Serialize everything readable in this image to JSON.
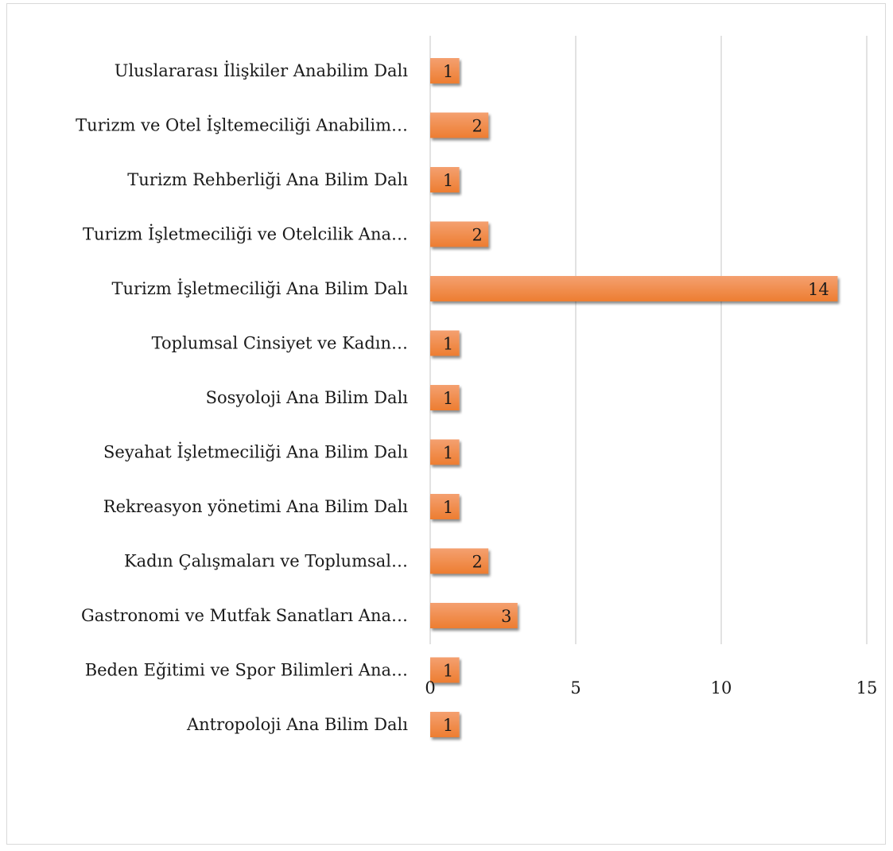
{
  "chart_data": {
    "type": "bar",
    "orientation": "horizontal",
    "categories": [
      "Uluslararası İlişkiler Anabilim Dalı",
      "Turizm ve Otel İşltemeciliği Anabilim…",
      "Turizm Rehberliği Ana Bilim Dalı",
      "Turizm İşletmeciliği ve Otelcilik Ana…",
      "Turizm İşletmeciliği Ana Bilim Dalı",
      "Toplumsal Cinsiyet ve Kadın…",
      "Sosyoloji Ana Bilim Dalı",
      "Seyahat İşletmeciliği Ana Bilim Dalı",
      "Rekreasyon yönetimi Ana Bilim Dalı",
      "Kadın Çalışmaları ve Toplumsal…",
      "Gastronomi ve Mutfak Sanatları Ana…",
      "Beden Eğitimi ve Spor Bilimleri Ana…",
      "Antropoloji Ana Bilim Dalı"
    ],
    "values": [
      1,
      2,
      1,
      2,
      14,
      1,
      1,
      1,
      1,
      2,
      3,
      1,
      1
    ],
    "xlim": [
      0,
      15
    ],
    "xticks": [
      "0",
      "5",
      "10",
      "15"
    ],
    "grid": true,
    "legend": "none",
    "bar_color": "#ed7d31",
    "bar_gradient_color": "#f4a070"
  }
}
